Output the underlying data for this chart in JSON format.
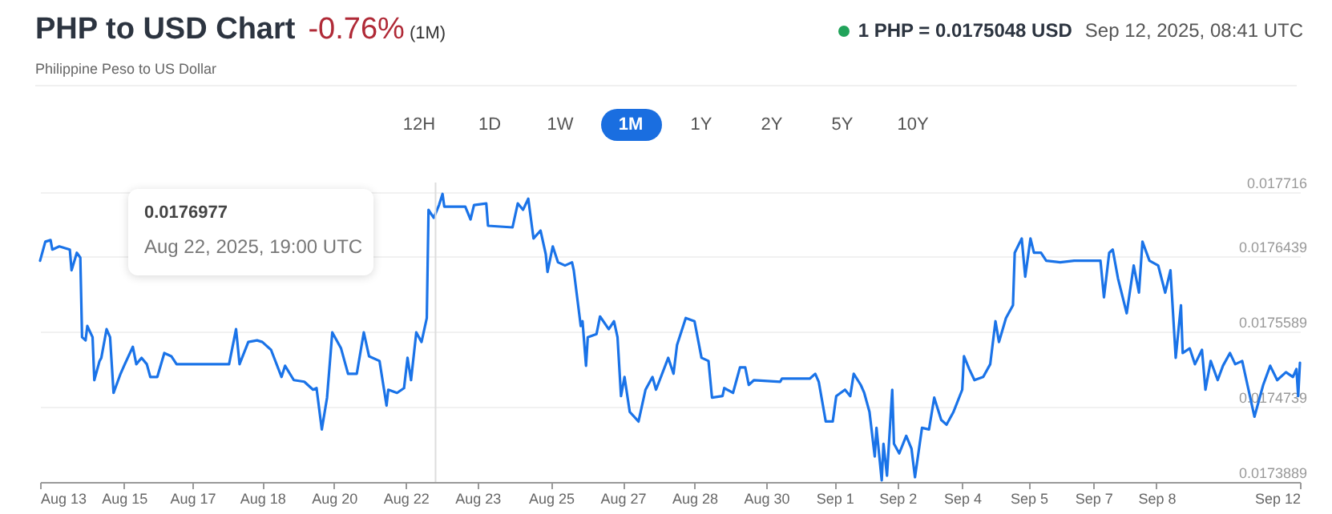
{
  "chart_data": {
    "type": "line",
    "title": "PHP to USD Chart",
    "subtitle": "Philippine Peso to US Dollar",
    "annotations": [
      "-0.76%",
      "(1M)",
      "1 PHP = 0.0175048 USD",
      "Sep 12, 2025, 08:41 UTC",
      "12H",
      "1D",
      "1W",
      "1M",
      "1Y",
      "2Y",
      "5Y",
      "10Y",
      "0.0176977",
      "Aug 22, 2025, 19:00 UTC"
    ],
    "x": [
      "2025-08-13T09:00",
      "2025-08-13T12:00",
      "2025-08-13T15:00",
      "2025-08-13T16:00",
      "2025-08-13T20:00",
      "2025-08-14T02:00",
      "2025-08-14T03:00",
      "2025-08-14T06:00",
      "2025-08-14T08:00",
      "2025-08-14T09:00",
      "2025-08-14T11:00",
      "2025-08-14T12:00",
      "2025-08-14T15:00",
      "2025-08-14T16:00",
      "2025-08-14T19:00",
      "2025-08-14T20:00",
      "2025-08-14T23:00",
      "2025-08-15T01:00",
      "2025-08-15T03:00",
      "2025-08-15T07:00",
      "2025-08-15T09:00",
      "2025-08-15T14:00",
      "2025-08-15T16:00",
      "2025-08-15T19:00",
      "2025-08-15T22:00",
      "2025-08-16T00:00",
      "2025-08-16T04:00",
      "2025-08-16T08:00",
      "2025-08-16T12:00",
      "2025-08-16T15:00",
      "2025-08-17T00:00",
      "2025-08-17T21:00",
      "2025-08-18T01:00",
      "2025-08-18T03:00",
      "2025-08-18T08:00",
      "2025-08-18T13:00",
      "2025-08-18T16:00",
      "2025-08-18T21:00",
      "2025-08-19T03:00",
      "2025-08-19T05:00",
      "2025-08-19T10:00",
      "2025-08-19T16:00",
      "2025-08-19T21:00",
      "2025-08-19T23:00",
      "2025-08-20T02:00",
      "2025-08-20T05:00",
      "2025-08-20T08:00",
      "2025-08-20T13:00",
      "2025-08-20T17:00",
      "2025-08-20T22:00",
      "2025-08-21T02:00",
      "2025-08-21T05:00",
      "2025-08-21T11:00",
      "2025-08-21T15:00",
      "2025-08-21T16:00",
      "2025-08-21T21:00",
      "2025-08-22T01:00",
      "2025-08-22T03:00",
      "2025-08-22T05:00",
      "2025-08-22T08:00",
      "2025-08-22T11:00",
      "2025-08-22T14:00",
      "2025-08-22T15:00",
      "2025-08-22T18:00",
      "2025-08-22T21:00",
      "2025-08-22T23:00",
      "2025-08-23T00:00",
      "2025-08-23T12:00",
      "2025-08-23T15:00",
      "2025-08-23T17:00",
      "2025-08-24T00:00",
      "2025-08-24T01:00",
      "2025-08-24T15:00",
      "2025-08-24T18:00",
      "2025-08-24T21:00",
      "2025-08-25T00:00",
      "2025-08-25T03:00",
      "2025-08-25T07:00",
      "2025-08-25T10:00",
      "2025-08-25T11:00",
      "2025-08-25T14:00",
      "2025-08-25T17:00",
      "2025-08-25T21:00",
      "2025-08-26T01:00",
      "2025-08-26T02:00",
      "2025-08-26T06:00",
      "2025-08-26T07:00",
      "2025-08-26T09:00",
      "2025-08-26T10:00",
      "2025-08-26T15:00",
      "2025-08-26T17:00",
      "2025-08-26T22:00",
      "2025-08-27T01:00",
      "2025-08-27T03:00",
      "2025-08-27T05:00",
      "2025-08-27T07:00",
      "2025-08-27T10:00",
      "2025-08-27T15:00",
      "2025-08-27T19:00",
      "2025-08-27T23:00",
      "2025-08-28T01:00",
      "2025-08-28T08:00",
      "2025-08-28T11:00",
      "2025-08-28T13:00",
      "2025-08-28T18:00",
      "2025-08-28T23:00",
      "2025-08-29T03:00",
      "2025-08-29T07:00",
      "2025-08-29T09:00",
      "2025-08-29T15:00",
      "2025-08-29T16:00",
      "2025-08-29T21:00",
      "2025-08-30T01:00",
      "2025-08-30T04:00",
      "2025-08-30T06:00",
      "2025-08-30T09:00",
      "2025-08-31T00:00",
      "2025-08-31T01:00",
      "2025-08-31T17:00",
      "2025-08-31T20:00",
      "2025-08-31T22:00",
      "2025-09-01T02:00",
      "2025-09-01T06:00",
      "2025-09-01T08:00",
      "2025-09-01T13:00",
      "2025-09-01T16:00",
      "2025-09-01T18:00",
      "2025-09-01T22:00",
      "2025-09-02T00:00",
      "2025-09-02T03:00",
      "2025-09-02T06:00",
      "2025-09-02T07:00",
      "2025-09-02T10:00",
      "2025-09-02T11:00",
      "2025-09-02T13:00",
      "2025-09-02T16:00",
      "2025-09-02T17:00",
      "2025-09-02T20:00",
      "2025-09-03T00:00",
      "2025-09-03T03:00",
      "2025-09-03T05:00",
      "2025-09-03T09:00",
      "2025-09-03T13:00",
      "2025-09-03T16:00",
      "2025-09-03T20:00",
      "2025-09-03T23:00",
      "2025-09-04T03:00",
      "2025-09-04T08:00",
      "2025-09-04T09:00",
      "2025-09-04T12:00",
      "2025-09-04T15:00",
      "2025-09-04T20:00",
      "2025-09-05T00:00",
      "2025-09-05T03:00",
      "2025-09-05T05:00",
      "2025-09-05T09:00",
      "2025-09-05T13:00",
      "2025-09-05T14:00",
      "2025-09-05T18:00",
      "2025-09-05T20:00",
      "2025-09-05T23:00",
      "2025-09-06T01:00",
      "2025-09-06T05:00",
      "2025-09-06T08:00",
      "2025-09-06T16:00",
      "2025-09-07T00:00",
      "2025-09-07T15:00",
      "2025-09-07T17:00",
      "2025-09-07T20:00",
      "2025-09-07T22:00",
      "2025-09-08T01:00",
      "2025-09-08T06:00",
      "2025-09-08T10:00",
      "2025-09-08T13:00",
      "2025-09-08T15:00",
      "2025-09-08T19:00",
      "2025-09-09T00:00",
      "2025-09-09T04:00",
      "2025-09-09T07:00",
      "2025-09-09T10:00",
      "2025-09-09T13:00",
      "2025-09-09T14:00",
      "2025-09-09T18:00",
      "2025-09-09T21:00",
      "2025-09-10T01:00",
      "2025-09-10T03:00",
      "2025-09-10T06:00",
      "2025-09-10T10:00",
      "2025-09-10T13:00",
      "2025-09-10T17:00",
      "2025-09-10T20:00",
      "2025-09-11T00:00",
      "2025-09-11T03:00",
      "2025-09-11T07:00",
      "2025-09-11T12:00",
      "2025-09-11T16:00",
      "2025-09-11T20:00",
      "2025-09-12T01:00",
      "2025-09-12T05:00",
      "2025-09-12T07:00",
      "2025-09-12T08:00",
      "2025-09-12T09:00"
    ],
    "series": [
      {
        "color": "#1a73e8",
        "values": [
          0.0176387,
          0.0176602,
          0.017662,
          0.0176513,
          0.0176549,
          0.0176513,
          0.0176279,
          0.0176477,
          0.0176423,
          0.0175524,
          0.0175488,
          0.017565,
          0.0175524,
          0.0175039,
          0.0175255,
          0.0175291,
          0.0175614,
          0.0175524,
          0.0174895,
          0.0175111,
          0.0175201,
          0.0175416,
          0.0175219,
          0.0175291,
          0.0175219,
          0.0175075,
          0.0175075,
          0.0175345,
          0.0175309,
          0.0175219,
          0.0175219,
          0.0175219,
          0.0175614,
          0.0175219,
          0.017547,
          0.0175488,
          0.017547,
          0.0175381,
          0.0175075,
          0.0175201,
          0.0175039,
          0.0175021,
          0.0174931,
          0.0174949,
          0.0174482,
          0.0174841,
          0.0175578,
          0.0175398,
          0.0175111,
          0.0175111,
          0.0175578,
          0.0175309,
          0.0175255,
          0.0174752,
          0.0174931,
          0.0174895,
          0.0174949,
          0.0175291,
          0.0175039,
          0.0175578,
          0.017547,
          0.017574,
          0.0176962,
          0.0176872,
          0.0177016,
          0.0177142,
          0.0176998,
          0.0176998,
          0.0176854,
          0.0177016,
          0.0177034,
          0.0176782,
          0.0176764,
          0.0177034,
          0.0176962,
          0.0177088,
          0.0176638,
          0.0176728,
          0.0176459,
          0.0176261,
          0.0176549,
          0.0176369,
          0.0176333,
          0.0176369,
          0.0176279,
          0.017565,
          0.0175704,
          0.0175201,
          0.0175524,
          0.017556,
          0.0175758,
          0.0175614,
          0.0175704,
          0.0175524,
          0.0174859,
          0.0175075,
          0.017468,
          0.0174572,
          0.0174931,
          0.0175075,
          0.0174931,
          0.0175291,
          0.0175111,
          0.0175434,
          0.017574,
          0.0175704,
          0.0175291,
          0.0175255,
          0.0174841,
          0.0174859,
          0.0174949,
          0.0174895,
          0.0175183,
          0.0175183,
          0.0174985,
          0.0175039,
          0.0175021,
          0.0175057,
          0.0175057,
          0.0175111,
          0.0175021,
          0.0174572,
          0.0174572,
          0.0174859,
          0.0174931,
          0.0174859,
          0.0175111,
          0.0174985,
          0.0174895,
          0.017468,
          0.0174177,
          0.01745,
          0.0173907,
          0.017432,
          0.0173961,
          0.0174931,
          0.017432,
          0.0174212,
          0.017441,
          0.0174266,
          0.0173943,
          0.01745,
          0.0174482,
          0.0174841,
          0.017459,
          0.0174536,
          0.017468,
          0.0174931,
          0.0175309,
          0.0175165,
          0.0175039,
          0.0175075,
          0.0175219,
          0.0175704,
          0.017547,
          0.017574,
          0.0175884,
          0.0176477,
          0.0176638,
          0.0176207,
          0.0176638,
          0.0176477,
          0.0176477,
          0.0176387,
          0.0176369,
          0.0176387,
          0.0176387,
          0.0175974,
          0.0176477,
          0.0176513,
          0.0176189,
          0.0175794,
          0.0176333,
          0.0176027,
          0.0176602,
          0.0176387,
          0.0176333,
          0.0176027,
          0.0176279,
          0.0175291,
          0.0175884,
          0.0175345,
          0.0175398,
          0.0175219,
          0.0175381,
          0.0174931,
          0.0175255,
          0.0175039,
          0.0175201,
          0.0175345,
          0.0175219,
          0.0175255,
          0.0174985,
          0.0174626,
          0.0174985,
          0.0175201,
          0.0175039,
          0.0175129,
          0.0175075,
          0.0175165,
          0.0174859,
          0.0175236
        ]
      }
    ],
    "xlim": [
      "2025-08-13T09:00",
      "2025-09-12T09:00"
    ],
    "xticks": [
      {
        "value": "2025-08-13T09:00",
        "label": "Aug 13"
      },
      {
        "value": "2025-08-15T09:00",
        "label": "Aug 15"
      },
      {
        "value": "2025-08-17T00:00",
        "label": "Aug 17"
      },
      {
        "value": "2025-08-18T16:00",
        "label": "Aug 18"
      },
      {
        "value": "2025-08-20T09:00",
        "label": "Aug 20"
      },
      {
        "value": "2025-08-22T02:00",
        "label": "Aug 22"
      },
      {
        "value": "2025-08-23T19:00",
        "label": "Aug 23"
      },
      {
        "value": "2025-08-25T13:00",
        "label": "Aug 25"
      },
      {
        "value": "2025-08-27T06:00",
        "label": "Aug 27"
      },
      {
        "value": "2025-08-28T23:00",
        "label": "Aug 28"
      },
      {
        "value": "2025-08-30T16:00",
        "label": "Aug 30"
      },
      {
        "value": "2025-09-01T07:00",
        "label": "Sep 1"
      },
      {
        "value": "2025-09-02T19:00",
        "label": "Sep 2"
      },
      {
        "value": "2025-09-04T08:00",
        "label": "Sep 4"
      },
      {
        "value": "2025-09-05T22:00",
        "label": "Sep 5"
      },
      {
        "value": "2025-09-07T11:00",
        "label": "Sep 7"
      },
      {
        "value": "2025-09-08T23:00",
        "label": "Sep 8"
      },
      {
        "value": "2025-09-12T09:00",
        "label": "Sep 12"
      }
    ],
    "ylim": [
      0.0173889,
      0.017727
    ],
    "yticks": [
      0.0173889,
      0.0174739,
      0.0175589,
      0.0176439,
      0.017716
    ],
    "ref_lines": [
      {
        "axis": "x",
        "value": "2025-08-22T19:00",
        "color": "#dddddd"
      }
    ],
    "grid": "y",
    "marker": "none",
    "line_style": "solid"
  }
}
